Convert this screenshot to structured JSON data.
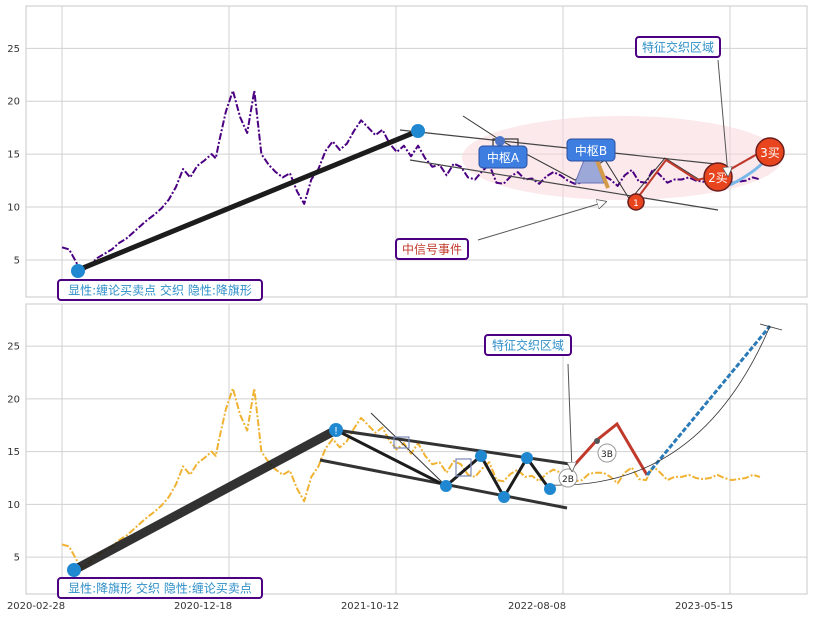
{
  "chart_data": [
    {
      "type": "line",
      "ylim": [
        1.5,
        29
      ],
      "yticks": [
        5,
        10,
        15,
        20,
        25
      ],
      "grid": true,
      "series": [
        {
          "role": "price",
          "color": "#4b0082",
          "style": "dash-dot",
          "x": [
            0,
            5,
            10,
            12,
            15,
            20,
            25,
            30,
            35,
            40,
            45,
            50,
            55,
            60,
            65,
            70,
            75,
            80,
            85,
            90,
            95,
            100,
            105,
            108,
            110,
            115,
            120,
            125,
            130,
            135,
            140,
            145,
            150,
            155,
            160,
            165,
            170,
            175,
            180,
            185,
            190,
            195,
            200,
            205,
            210,
            215,
            220,
            225,
            230,
            235,
            240,
            245,
            250,
            255,
            260,
            265,
            270,
            275,
            280,
            285,
            290,
            295,
            300,
            305,
            310,
            315,
            320,
            325,
            330,
            335,
            340,
            345,
            350,
            355,
            360,
            365,
            370,
            375,
            380,
            385,
            390,
            395,
            400,
            405,
            410,
            415,
            420,
            425,
            430,
            435,
            440,
            445,
            450,
            455,
            460,
            465,
            470,
            475,
            480,
            485,
            490
          ],
          "y": [
            6.2,
            6.0,
            4.8,
            4.2,
            4.0,
            4.6,
            5.2,
            5.6,
            6.0,
            6.6,
            7.0,
            7.6,
            8.2,
            8.8,
            9.3,
            9.9,
            10.7,
            11.9,
            13.6,
            12.8,
            13.9,
            14.4,
            15.0,
            14.6,
            16.0,
            19.0,
            21.0,
            18.5,
            17.0,
            21.0,
            15.0,
            14.0,
            13.3,
            12.8,
            13.2,
            11.5,
            10.3,
            12.6,
            13.6,
            15.3,
            16.2,
            15.4,
            16.0,
            17.2,
            18.2,
            17.5,
            16.8,
            17.3,
            16.0,
            15.2,
            15.8,
            14.8,
            15.8,
            14.6,
            13.8,
            14.0,
            13.0,
            14.1,
            13.8,
            12.8,
            12.6,
            13.4,
            14.0,
            12.3,
            12.2,
            12.9,
            13.3,
            12.6,
            12.7,
            12.2,
            12.9,
            13.3,
            13.0,
            12.5,
            12.2,
            12.3,
            12.9,
            13.0,
            13.0,
            12.6,
            12.0,
            13.0,
            13.5,
            12.4,
            12.3,
            13.6,
            13.0,
            12.3,
            12.6,
            12.6,
            12.8,
            12.5,
            12.4,
            12.5,
            12.8,
            12.5,
            12.3,
            12.4,
            12.5,
            12.8,
            12.6
          ]
        }
      ],
      "annotations": {
        "style_box": "显性:缠论买卖点 交织 隐性:降旗形",
        "signal_box": "中信号事件",
        "feature_box": "特征交织区域",
        "zhongshu_a": "中枢A",
        "zhongshu_b": "中枢B",
        "buy1": "1",
        "buy2": "2买",
        "buy3": "3买"
      }
    },
    {
      "type": "line",
      "ylim": [
        1.5,
        29
      ],
      "yticks": [
        5,
        10,
        15,
        20,
        25
      ],
      "xticks": [
        "2020-02-28",
        "2020-12-18",
        "2021-10-12",
        "2022-08-08",
        "2023-05-15"
      ],
      "grid": true,
      "series": [
        {
          "role": "price",
          "color": "#f0b232",
          "style": "dash-dot",
          "x": [
            0,
            5,
            10,
            12,
            15,
            20,
            25,
            30,
            35,
            40,
            45,
            50,
            55,
            60,
            65,
            70,
            75,
            80,
            85,
            90,
            95,
            100,
            105,
            108,
            110,
            115,
            120,
            125,
            130,
            135,
            140,
            145,
            150,
            155,
            160,
            165,
            170,
            175,
            180,
            185,
            190,
            195,
            200,
            205,
            210,
            215,
            220,
            225,
            230,
            235,
            240,
            245,
            250,
            255,
            260,
            265,
            270,
            275,
            280,
            285,
            290,
            295,
            300,
            305,
            310,
            315,
            320,
            325,
            330,
            335,
            340,
            345,
            350,
            355,
            360,
            365,
            370,
            375,
            380,
            385,
            390,
            395,
            400,
            405,
            410,
            415,
            420,
            425,
            430,
            435,
            440,
            445,
            450,
            455,
            460,
            465,
            470,
            475,
            480,
            485,
            490
          ],
          "y": [
            6.2,
            6.0,
            4.8,
            4.2,
            4.0,
            4.6,
            5.2,
            5.6,
            6.0,
            6.6,
            7.0,
            7.6,
            8.2,
            8.8,
            9.3,
            9.9,
            10.7,
            11.9,
            13.6,
            12.8,
            13.9,
            14.4,
            15.0,
            14.6,
            16.0,
            19.0,
            21.0,
            18.5,
            17.0,
            21.0,
            15.0,
            14.0,
            13.3,
            12.8,
            13.2,
            11.5,
            10.3,
            12.6,
            13.6,
            15.3,
            16.2,
            15.4,
            16.0,
            17.2,
            18.2,
            17.5,
            16.8,
            17.3,
            16.0,
            15.2,
            15.8,
            14.8,
            15.8,
            14.6,
            13.8,
            14.0,
            13.0,
            14.1,
            13.8,
            12.8,
            12.6,
            13.4,
            14.0,
            12.3,
            12.2,
            12.9,
            13.3,
            12.6,
            12.7,
            12.2,
            12.9,
            13.3,
            13.0,
            12.5,
            12.2,
            12.3,
            12.9,
            13.0,
            13.0,
            12.6,
            12.0,
            13.0,
            13.5,
            12.4,
            12.3,
            13.6,
            13.0,
            12.3,
            12.6,
            12.6,
            12.8,
            12.5,
            12.4,
            12.5,
            12.8,
            12.5,
            12.3,
            12.4,
            12.5,
            12.8,
            12.6
          ]
        }
      ],
      "annotations": {
        "style_box": "显性:降旗形 交织 隐性:缠论买卖点",
        "feature_box": "特征交织区域",
        "b2": "2B",
        "b3": "3B",
        "sig": "!"
      }
    }
  ],
  "colors": {
    "grid": "#d0d0d0",
    "purple": "#4b0082",
    "orange": "#f0b232",
    "blue_dot": "#1f88d0",
    "box_border": "#4b0082",
    "box_text": "#2f8fc8",
    "red_text": "#c0392b",
    "zs_fill": "#3d7ee0",
    "buy_fill": "#e8451e",
    "pink": "#f8d7dd"
  }
}
